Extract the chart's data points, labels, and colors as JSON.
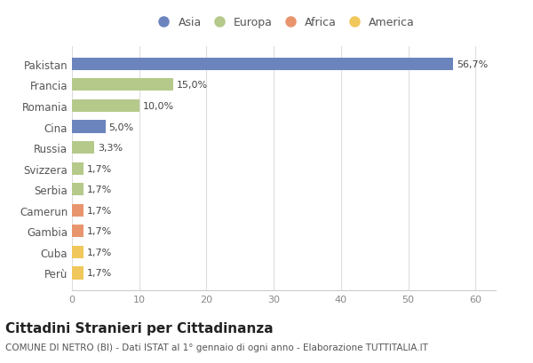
{
  "categories": [
    "Pakistan",
    "Francia",
    "Romania",
    "Cina",
    "Russia",
    "Svizzera",
    "Serbia",
    "Camerun",
    "Gambia",
    "Cuba",
    "Perù"
  ],
  "values": [
    56.7,
    15.0,
    10.0,
    5.0,
    3.3,
    1.7,
    1.7,
    1.7,
    1.7,
    1.7,
    1.7
  ],
  "labels": [
    "56,7%",
    "15,0%",
    "10,0%",
    "5,0%",
    "3,3%",
    "1,7%",
    "1,7%",
    "1,7%",
    "1,7%",
    "1,7%",
    "1,7%"
  ],
  "colors": [
    "#6b84be",
    "#b5c98a",
    "#b5c98a",
    "#6b84be",
    "#b5c98a",
    "#b5c98a",
    "#b5c98a",
    "#e8956d",
    "#e8956d",
    "#f0c75a",
    "#f0c75a"
  ],
  "legend": {
    "Asia": "#6b84be",
    "Europa": "#b5c98a",
    "Africa": "#e8956d",
    "America": "#f0c75a"
  },
  "xlim": [
    0,
    63
  ],
  "xticks": [
    0,
    10,
    20,
    30,
    40,
    50,
    60
  ],
  "title": "Cittadini Stranieri per Cittadinanza",
  "subtitle": "COMUNE DI NETRO (BI) - Dati ISTAT al 1° gennaio di ogni anno - Elaborazione TUTTITALIA.IT",
  "background_color": "#ffffff",
  "bar_height": 0.6,
  "title_fontsize": 11,
  "subtitle_fontsize": 7.5,
  "label_fontsize": 8,
  "tick_fontsize": 8,
  "ytick_fontsize": 8.5
}
